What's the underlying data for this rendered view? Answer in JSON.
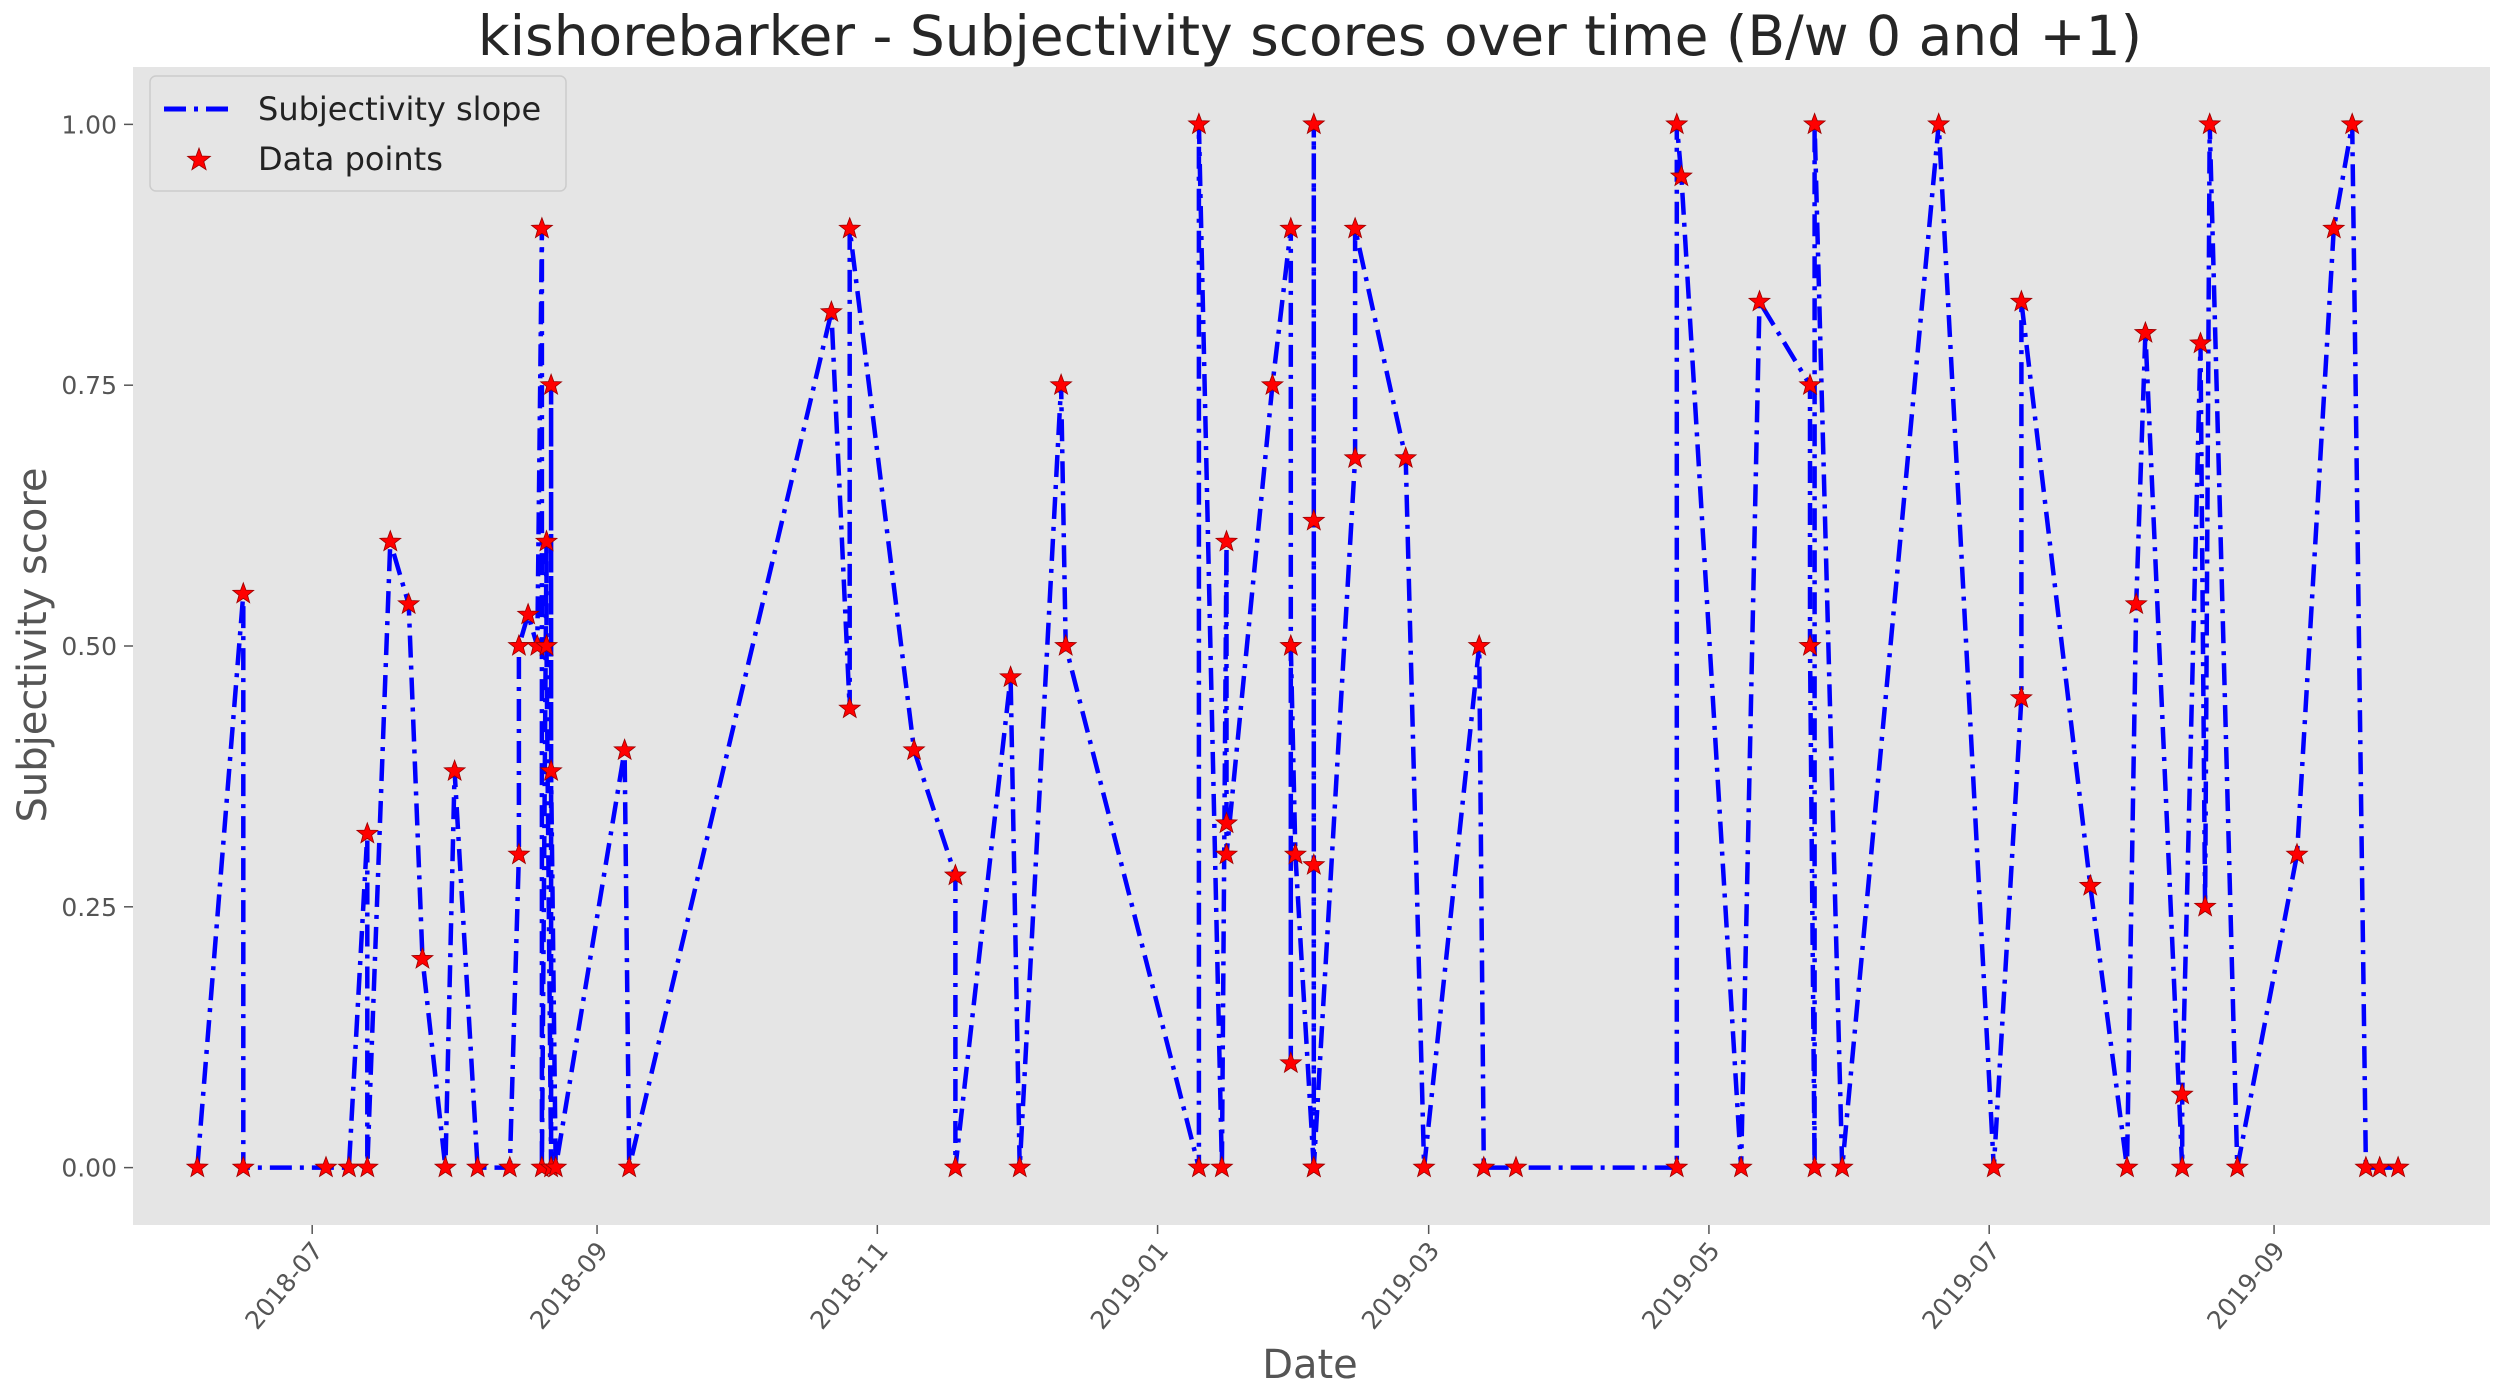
{
  "chart_data": {
    "type": "line",
    "title": "kishorebarker - Subjectivity scores over time (B/w 0 and +1)",
    "xlabel": "Date",
    "ylabel": "Subjectivity score",
    "x_ticks": [
      "2018-07",
      "2018-09",
      "2018-11",
      "2019-01",
      "2019-03",
      "2019-05",
      "2019-07",
      "2019-09"
    ],
    "y_ticks": [
      "0.00",
      "0.25",
      "0.50",
      "0.75",
      "1.00"
    ],
    "xlim": [
      "2018-05-23",
      "2019-10-18"
    ],
    "ylim": [
      -0.055,
      1.055
    ],
    "grid": false,
    "legend_position": "top-left",
    "colors": {
      "line": "#0000ff",
      "marker": "#ff0000",
      "plot_background": "#e5e5e5"
    },
    "series": [
      {
        "name": "Subjectivity slope",
        "points": [
          {
            "x": "2018-06-06",
            "y": 0
          },
          {
            "x": "2018-06-16",
            "y": 0.55
          },
          {
            "x": "2018-06-16",
            "y": 0
          },
          {
            "x": "2018-07-04",
            "y": 0
          },
          {
            "x": "2018-07-09",
            "y": 0
          },
          {
            "x": "2018-07-13",
            "y": 0.32
          },
          {
            "x": "2018-07-13",
            "y": 0
          },
          {
            "x": "2018-07-18",
            "y": 0.6
          },
          {
            "x": "2018-07-22",
            "y": 0.54
          },
          {
            "x": "2018-07-25",
            "y": 0.2
          },
          {
            "x": "2018-07-30",
            "y": 0
          },
          {
            "x": "2018-08-01",
            "y": 0.38
          },
          {
            "x": "2018-08-06",
            "y": 0
          },
          {
            "x": "2018-08-13",
            "y": 0
          },
          {
            "x": "2018-08-15",
            "y": 0.3
          },
          {
            "x": "2018-08-15",
            "y": 0.5
          },
          {
            "x": "2018-08-17",
            "y": 0.53
          },
          {
            "x": "2018-08-19",
            "y": 0.5
          },
          {
            "x": "2018-08-20",
            "y": 0.9
          },
          {
            "x": "2018-08-20",
            "y": 0
          },
          {
            "x": "2018-08-21",
            "y": 0.6
          },
          {
            "x": "2018-08-21",
            "y": 0.5
          },
          {
            "x": "2018-08-22",
            "y": 0
          },
          {
            "x": "2018-08-22",
            "y": 0.75
          },
          {
            "x": "2018-08-22",
            "y": 0.38
          },
          {
            "x": "2018-08-23",
            "y": 0
          },
          {
            "x": "2018-09-07",
            "y": 0.4
          },
          {
            "x": "2018-09-08",
            "y": 0
          },
          {
            "x": "2018-10-22",
            "y": 0.82
          },
          {
            "x": "2018-10-26",
            "y": 0.44
          },
          {
            "x": "2018-10-26",
            "y": 0.9
          },
          {
            "x": "2018-11-09",
            "y": 0.4
          },
          {
            "x": "2018-11-18",
            "y": 0.28
          },
          {
            "x": "2018-11-18",
            "y": 0
          },
          {
            "x": "2018-11-30",
            "y": 0.47
          },
          {
            "x": "2018-12-02",
            "y": 0
          },
          {
            "x": "2018-12-11",
            "y": 0.75
          },
          {
            "x": "2018-12-12",
            "y": 0.5
          },
          {
            "x": "2019-01-10",
            "y": 0
          },
          {
            "x": "2019-01-10",
            "y": 1.0
          },
          {
            "x": "2019-01-15",
            "y": 0
          },
          {
            "x": "2019-01-16",
            "y": 0.6
          },
          {
            "x": "2019-01-16",
            "y": 0.33
          },
          {
            "x": "2019-01-16",
            "y": 0.3
          },
          {
            "x": "2019-01-26",
            "y": 0.75
          },
          {
            "x": "2019-01-30",
            "y": 0.9
          },
          {
            "x": "2019-01-30",
            "y": 0.1
          },
          {
            "x": "2019-01-30",
            "y": 0.5
          },
          {
            "x": "2019-01-31",
            "y": 0.3
          },
          {
            "x": "2019-02-04",
            "y": 0
          },
          {
            "x": "2019-02-04",
            "y": 1.0
          },
          {
            "x": "2019-02-04",
            "y": 0.62
          },
          {
            "x": "2019-02-04",
            "y": 0.29
          },
          {
            "x": "2019-02-04",
            "y": 0
          },
          {
            "x": "2019-02-13",
            "y": 0.68
          },
          {
            "x": "2019-02-13",
            "y": 0.9
          },
          {
            "x": "2019-02-24",
            "y": 0.68
          },
          {
            "x": "2019-02-28",
            "y": 0
          },
          {
            "x": "2019-03-12",
            "y": 0.5
          },
          {
            "x": "2019-03-13",
            "y": 0
          },
          {
            "x": "2019-03-20",
            "y": 0
          },
          {
            "x": "2019-04-24",
            "y": 0
          },
          {
            "x": "2019-04-24",
            "y": 1.0
          },
          {
            "x": "2019-04-25",
            "y": 0.95
          },
          {
            "x": "2019-05-08",
            "y": 0
          },
          {
            "x": "2019-05-12",
            "y": 0.83
          },
          {
            "x": "2019-05-23",
            "y": 0.75
          },
          {
            "x": "2019-05-23",
            "y": 0.5
          },
          {
            "x": "2019-05-24",
            "y": 0
          },
          {
            "x": "2019-05-24",
            "y": 1.0
          },
          {
            "x": "2019-05-30",
            "y": 0
          },
          {
            "x": "2019-06-20",
            "y": 1.0
          },
          {
            "x": "2019-07-02",
            "y": 0
          },
          {
            "x": "2019-07-08",
            "y": 0.45
          },
          {
            "x": "2019-07-08",
            "y": 0.83
          },
          {
            "x": "2019-07-23",
            "y": 0.27
          },
          {
            "x": "2019-07-31",
            "y": 0
          },
          {
            "x": "2019-08-02",
            "y": 0.54
          },
          {
            "x": "2019-08-04",
            "y": 0.8
          },
          {
            "x": "2019-08-12",
            "y": 0
          },
          {
            "x": "2019-08-12",
            "y": 0.07
          },
          {
            "x": "2019-08-16",
            "y": 0.79
          },
          {
            "x": "2019-08-17",
            "y": 0.25
          },
          {
            "x": "2019-08-18",
            "y": 1.0
          },
          {
            "x": "2019-08-24",
            "y": 0
          },
          {
            "x": "2019-09-06",
            "y": 0.3
          },
          {
            "x": "2019-09-14",
            "y": 0.9
          },
          {
            "x": "2019-09-18",
            "y": 1.0
          },
          {
            "x": "2019-09-21",
            "y": 0
          },
          {
            "x": "2019-09-24",
            "y": 0
          },
          {
            "x": "2019-09-28",
            "y": 0
          }
        ]
      },
      {
        "name": "Data points"
      }
    ]
  }
}
